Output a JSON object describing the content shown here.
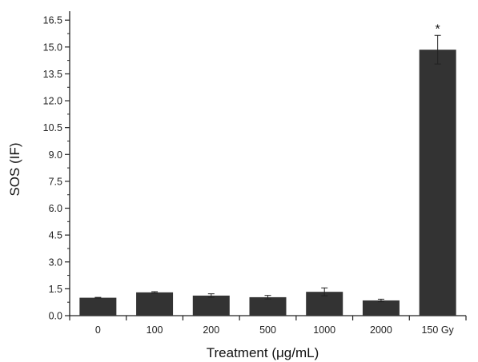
{
  "chart_data": {
    "type": "bar",
    "title": "",
    "xlabel": "Treatment (μg/mL)",
    "ylabel": "SOS (IF)",
    "categories": [
      "0",
      "100",
      "200",
      "500",
      "1000",
      "2000",
      "150 Gy"
    ],
    "values": [
      1.0,
      1.3,
      1.12,
      1.03,
      1.33,
      0.85,
      14.85
    ],
    "errors": [
      0.02,
      0.04,
      0.1,
      0.1,
      0.22,
      0.07,
      0.8
    ],
    "annotations": [
      "",
      "",
      "",
      "",
      "",
      "",
      "*"
    ],
    "ylim": [
      0,
      17
    ],
    "yticks": [
      "0.0",
      "1.5",
      "3.0",
      "4.5",
      "6.0",
      "7.5",
      "9.0",
      "10.5",
      "12.0",
      "13.5",
      "15.0",
      "16.5"
    ],
    "grid": false,
    "legend": "none",
    "colors": {
      "bar": "#333333",
      "axis": "#222222",
      "error": "#222222"
    }
  }
}
